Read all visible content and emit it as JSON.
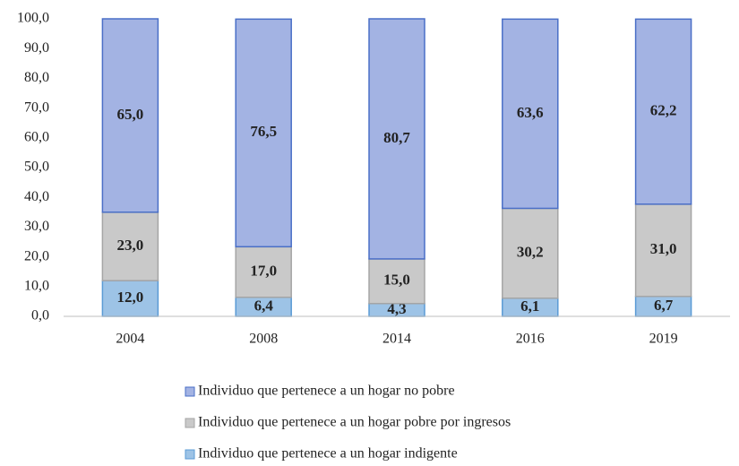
{
  "chart_data": {
    "type": "stacked_bar",
    "categories": [
      "2004",
      "2008",
      "2014",
      "2016",
      "2019"
    ],
    "series": [
      {
        "name": "Individuo que pertenece a un hogar indigente",
        "color": "#9dc3e6",
        "stroke": "#5b9bd5",
        "values": [
          12.0,
          6.4,
          4.3,
          6.1,
          6.7
        ],
        "value_labels": [
          "12,0",
          "6,4",
          "4,3",
          "6,1",
          "6,7"
        ]
      },
      {
        "name": "Individuo que pertenece a un hogar pobre por ingresos",
        "color": "#c9c9c9",
        "stroke": "#a5a5a5",
        "values": [
          23.0,
          17.0,
          15.0,
          30.2,
          31.0
        ],
        "value_labels": [
          "23,0",
          "17,0",
          "15,0",
          "30,2",
          "31,0"
        ]
      },
      {
        "name": "Individuo que pertenece a un hogar no pobre",
        "color": "#a3b3e3",
        "stroke": "#4a6fc7",
        "values": [
          65.0,
          76.5,
          80.7,
          63.6,
          62.2
        ],
        "value_labels": [
          "65,0",
          "76,5",
          "80,7",
          "63,6",
          "62,2"
        ]
      }
    ],
    "ylim": [
      0,
      100
    ],
    "yticks": [
      {
        "value": 0,
        "label": "0,0"
      },
      {
        "value": 10,
        "label": "10,0"
      },
      {
        "value": 20,
        "label": "20,0"
      },
      {
        "value": 30,
        "label": "30,0"
      },
      {
        "value": 40,
        "label": "40,0"
      },
      {
        "value": 50,
        "label": "50,0"
      },
      {
        "value": 60,
        "label": "60,0"
      },
      {
        "value": 70,
        "label": "70,0"
      },
      {
        "value": 80,
        "label": "80,0"
      },
      {
        "value": 90,
        "label": "90,0"
      },
      {
        "value": 100,
        "label": "100,0"
      }
    ],
    "grid": false
  }
}
